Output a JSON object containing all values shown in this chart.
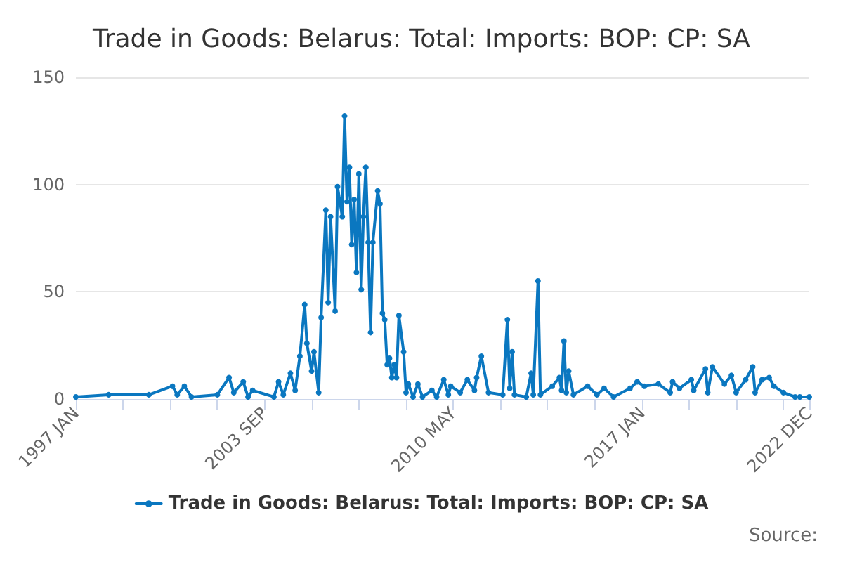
{
  "chart_data": {
    "type": "line",
    "title": "Trade in Goods: Belarus: Total: Imports: BOP: CP: SA",
    "annotations": [
      "Source:"
    ],
    "x": [
      "1997-01",
      "1998-03",
      "1999-08",
      "2000-06",
      "2000-08",
      "2000-11",
      "2001-02",
      "2002-01",
      "2002-06",
      "2002-08",
      "2002-12",
      "2003-02",
      "2003-04",
      "2004-01",
      "2004-03",
      "2004-05",
      "2004-08",
      "2004-10",
      "2004-12",
      "2005-02",
      "2005-03",
      "2005-05",
      "2005-06",
      "2005-08",
      "2005-09",
      "2005-11",
      "2005-12",
      "2006-01",
      "2006-03",
      "2006-04",
      "2006-06",
      "2006-07",
      "2006-08",
      "2006-09",
      "2006-10",
      "2006-11",
      "2006-12",
      "2007-01",
      "2007-02",
      "2007-03",
      "2007-04",
      "2007-05",
      "2007-06",
      "2007-07",
      "2007-09",
      "2007-10",
      "2007-11",
      "2007-12",
      "2008-01",
      "2008-02",
      "2008-03",
      "2008-04",
      "2008-05",
      "2008-06",
      "2008-08",
      "2008-09",
      "2008-10",
      "2008-12",
      "2009-02",
      "2009-04",
      "2009-08",
      "2009-10",
      "2010-01",
      "2010-03",
      "2010-04",
      "2010-08",
      "2010-11",
      "2011-02",
      "2011-03",
      "2011-05",
      "2011-08",
      "2012-02",
      "2012-04",
      "2012-05",
      "2012-06",
      "2012-07",
      "2012-12",
      "2013-02",
      "2013-03",
      "2013-05",
      "2013-06",
      "2013-11",
      "2014-02",
      "2014-03",
      "2014-04",
      "2014-05",
      "2014-06",
      "2014-08",
      "2015-02",
      "2015-06",
      "2015-09",
      "2016-01",
      "2016-08",
      "2016-11",
      "2017-02",
      "2017-08",
      "2018-01",
      "2018-02",
      "2018-05",
      "2018-10",
      "2018-11",
      "2019-04",
      "2019-05",
      "2019-07",
      "2019-12",
      "2020-03",
      "2020-05",
      "2020-09",
      "2020-12",
      "2021-01",
      "2021-04",
      "2021-07",
      "2021-09",
      "2022-01",
      "2022-06",
      "2022-08",
      "2022-12"
    ],
    "series": [
      {
        "name": "Trade in Goods: Belarus: Total: Imports: BOP: CP: SA",
        "color": "#0a77c0",
        "values": [
          1,
          2,
          2,
          6,
          2,
          6,
          1,
          2,
          10,
          3,
          8,
          1,
          4,
          1,
          8,
          2,
          12,
          4,
          20,
          44,
          26,
          13,
          22,
          3,
          38,
          88,
          45,
          85,
          41,
          99,
          85,
          132,
          92,
          108,
          72,
          93,
          59,
          105,
          51,
          85,
          108,
          73,
          31,
          73,
          97,
          91,
          40,
          37,
          16,
          19,
          10,
          16,
          10,
          39,
          22,
          3,
          7,
          1,
          7,
          1,
          4,
          1,
          9,
          2,
          6,
          3,
          9,
          4,
          10,
          20,
          3,
          2,
          37,
          5,
          22,
          2,
          1,
          12,
          2,
          55,
          2,
          6,
          10,
          4,
          27,
          3,
          13,
          2,
          6,
          2,
          5,
          1,
          5,
          8,
          6,
          7,
          3,
          8,
          5,
          9,
          4,
          14,
          3,
          15,
          7,
          11,
          3,
          9,
          15,
          3,
          9,
          10,
          6,
          3,
          1,
          1,
          1
        ]
      }
    ],
    "xlim": [
      "1997-01",
      "2022-12"
    ],
    "xticks": [
      {
        "value": "1997-01",
        "label": "1997 JAN"
      },
      {
        "value": "1998-09",
        "label": null
      },
      {
        "value": "2000-05",
        "label": null
      },
      {
        "value": "2002-01",
        "label": null
      },
      {
        "value": "2003-09",
        "label": "2003 SEP"
      },
      {
        "value": "2005-05",
        "label": null
      },
      {
        "value": "2007-01",
        "label": null
      },
      {
        "value": "2008-09",
        "label": null
      },
      {
        "value": "2010-05",
        "label": "2010 MAY"
      },
      {
        "value": "2012-01",
        "label": null
      },
      {
        "value": "2013-09",
        "label": null
      },
      {
        "value": "2015-05",
        "label": null
      },
      {
        "value": "2017-01",
        "label": "2017 JAN"
      },
      {
        "value": "2018-09",
        "label": null
      },
      {
        "value": "2020-05",
        "label": null
      },
      {
        "value": "2022-01",
        "label": null
      },
      {
        "value": "2022-12",
        "label": "2022 DEC"
      }
    ],
    "ylim": [
      0,
      150
    ],
    "yticks": [
      0,
      50,
      100,
      150
    ],
    "grid": "y",
    "legend": "bottom",
    "marker": "circle",
    "line_style": "solid"
  }
}
